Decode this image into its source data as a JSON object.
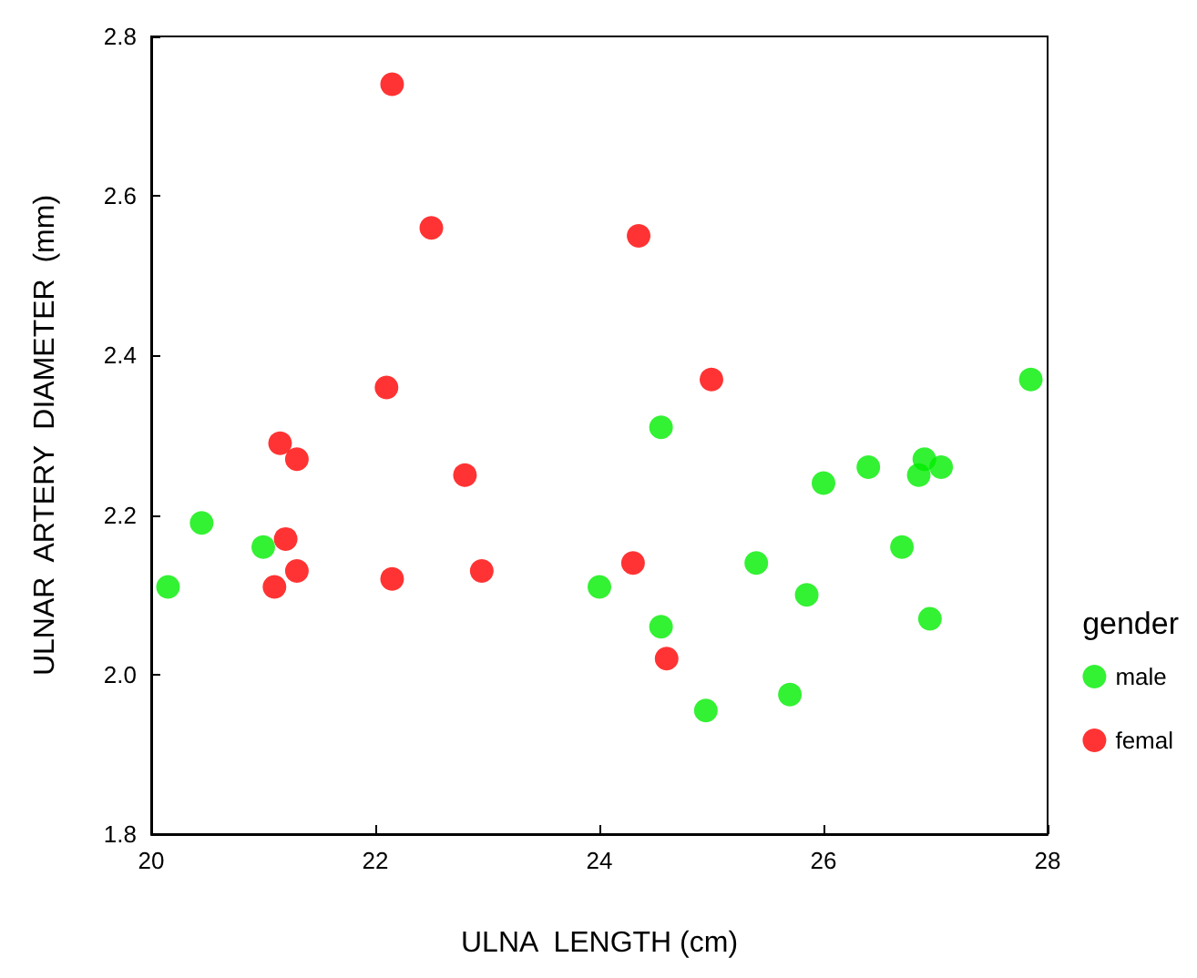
{
  "chart_data": {
    "type": "scatter",
    "xlabel": "ULNA  LENGTH (cm)",
    "ylabel": "ULNAR  ARTERY  DIAMETER  (mm)",
    "legend_title": "gender",
    "legend": "right",
    "marker": "circle",
    "grid": false,
    "xlim": [
      20,
      28
    ],
    "xticks": [
      20,
      22,
      24,
      26,
      28
    ],
    "ylim": [
      1.8,
      2.8
    ],
    "yticks": [
      {
        "value": 1.8,
        "label": "1.8"
      },
      {
        "value": 2.0,
        "label": "2.0"
      },
      {
        "value": 2.2,
        "label": "2.2"
      },
      {
        "value": 2.4,
        "label": "2.4"
      },
      {
        "value": 2.6,
        "label": "2.6"
      },
      {
        "value": 2.8,
        "label": "2.8"
      }
    ],
    "series": [
      {
        "name": "male",
        "color": "#00ee00",
        "x": [
          20.15,
          20.45,
          21.0,
          24.0,
          24.55,
          24.55,
          25.4,
          24.95,
          25.85,
          25.7,
          26.0,
          26.4,
          26.7,
          26.85,
          26.9,
          27.05,
          26.95,
          27.85
        ],
        "values": [
          2.11,
          2.19,
          2.16,
          2.11,
          2.31,
          2.06,
          2.14,
          1.955,
          2.1,
          1.975,
          2.24,
          2.26,
          2.16,
          2.25,
          2.27,
          2.26,
          2.07,
          2.37
        ]
      },
      {
        "name": "femal",
        "color": "#ff0000",
        "x": [
          22.15,
          22.5,
          24.35,
          22.1,
          25.0,
          21.15,
          21.3,
          22.8,
          21.2,
          21.3,
          21.1,
          22.15,
          22.95,
          24.3,
          24.6
        ],
        "values": [
          2.74,
          2.56,
          2.55,
          2.36,
          2.37,
          2.29,
          2.27,
          2.25,
          2.17,
          2.13,
          2.11,
          2.12,
          2.13,
          2.14,
          2.02
        ]
      }
    ]
  }
}
